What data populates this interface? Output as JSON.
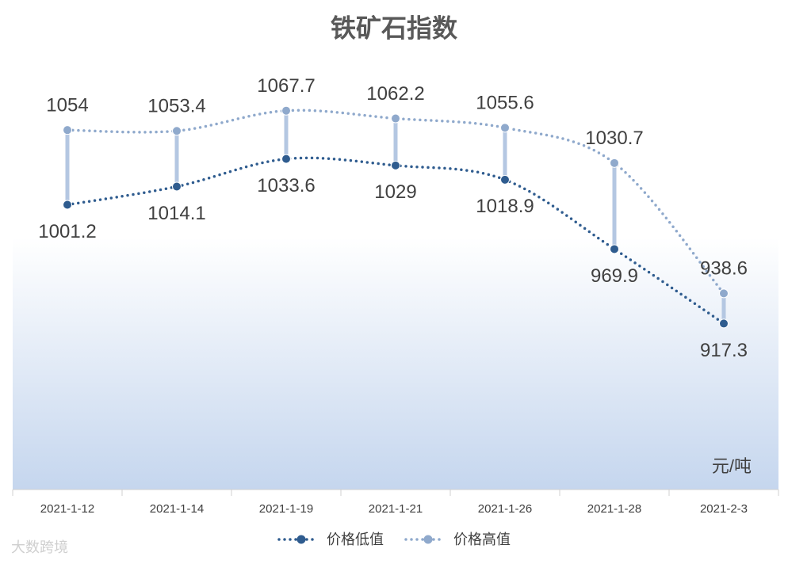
{
  "chart_data": {
    "type": "line",
    "title": "铁矿石指数",
    "unit_label": "元/吨",
    "watermark": "大数跨境",
    "categories": [
      "2021-1-12",
      "2021-1-14",
      "2021-1-19",
      "2021-1-21",
      "2021-1-26",
      "2021-1-28",
      "2021-2-3"
    ],
    "series": [
      {
        "name": "价格低值",
        "color": "#2f5c8f",
        "values": [
          1001.2,
          1014.1,
          1033.6,
          1029,
          1018.9,
          969.9,
          917.3
        ]
      },
      {
        "name": "价格高值",
        "color": "#8fa9cc",
        "values": [
          1054,
          1053.4,
          1067.7,
          1062.2,
          1055.6,
          1030.7,
          938.6
        ]
      }
    ],
    "ylim": [
      800,
      1100
    ],
    "high_low_lines": true,
    "smooth": true,
    "legend": "bottom"
  }
}
